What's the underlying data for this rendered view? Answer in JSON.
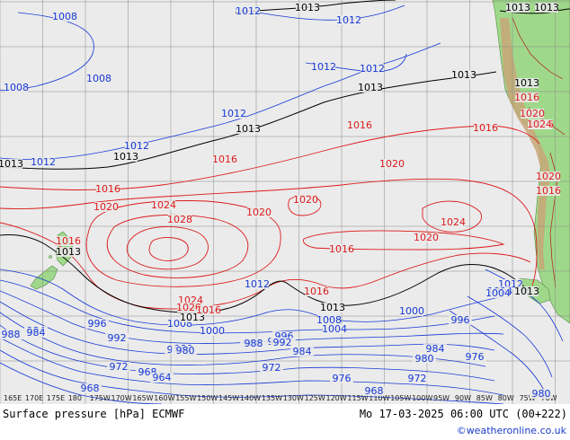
{
  "title": "Surface pressure [hPa] ECMWF",
  "valid_time": "Mo 17-03-2025 06:00 UTC (00+222)",
  "credit": "©weatheronline.co.uk",
  "lon_labels": [
    "165E",
    "170E",
    "175E",
    "180",
    "175W",
    "170W",
    "165W",
    "160W",
    "155W",
    "150W",
    "145W",
    "140W",
    "135W",
    "130W",
    "125W",
    "120W",
    "115W",
    "110W",
    "105W",
    "100W",
    "95W",
    "90W",
    "85W",
    "80W",
    "75W",
    "70W"
  ],
  "isobar_labels": {
    "low": [
      {
        "t": "1008"
      },
      {
        "t": "1008"
      },
      {
        "t": "1008"
      },
      {
        "t": "1012"
      },
      {
        "t": "1012"
      },
      {
        "t": "1012"
      },
      {
        "t": "1012"
      },
      {
        "t": "1012"
      },
      {
        "t": "1012"
      },
      {
        "t": "1012"
      },
      {
        "t": "1012"
      },
      {
        "t": "1012"
      },
      {
        "t": "1008"
      },
      {
        "t": "1004"
      },
      {
        "t": "1004"
      },
      {
        "t": "1000"
      },
      {
        "t": "1000"
      },
      {
        "t": "996"
      },
      {
        "t": "996"
      },
      {
        "t": "992"
      },
      {
        "t": "992"
      },
      {
        "t": "988"
      },
      {
        "t": "988"
      },
      {
        "t": "984"
      },
      {
        "t": "984"
      },
      {
        "t": "984"
      },
      {
        "t": "984"
      },
      {
        "t": "980"
      },
      {
        "t": "980"
      },
      {
        "t": "980"
      },
      {
        "t": "976"
      },
      {
        "t": "976"
      },
      {
        "t": "972"
      },
      {
        "t": "972"
      },
      {
        "t": "972"
      },
      {
        "t": "968"
      },
      {
        "t": "968"
      },
      {
        "t": "968"
      },
      {
        "t": "964"
      },
      {
        "t": "1008"
      },
      {
        "t": "1004"
      },
      {
        "t": "996"
      },
      {
        "t": "992"
      },
      {
        "t": "988"
      },
      {
        "t": "984"
      },
      {
        "t": "976"
      },
      {
        "t": "980"
      }
    ],
    "normal": [
      {
        "t": "1013"
      },
      {
        "t": "1013"
      },
      {
        "t": "1013"
      },
      {
        "t": "1013"
      },
      {
        "t": "1013"
      },
      {
        "t": "1013"
      },
      {
        "t": "1013"
      },
      {
        "t": "1013"
      },
      {
        "t": "1013"
      },
      {
        "t": "1013"
      },
      {
        "t": "1013"
      },
      {
        "t": "1013"
      },
      {
        "t": "1013"
      }
    ],
    "high": [
      {
        "t": "1016"
      },
      {
        "t": "1016"
      },
      {
        "t": "1016"
      },
      {
        "t": "1016"
      },
      {
        "t": "1016"
      },
      {
        "t": "1016"
      },
      {
        "t": "1020"
      },
      {
        "t": "1020"
      },
      {
        "t": "1020"
      },
      {
        "t": "1020"
      },
      {
        "t": "1020"
      },
      {
        "t": "1024"
      },
      {
        "t": "1024"
      },
      {
        "t": "1024"
      },
      {
        "t": "1028"
      },
      {
        "t": "1020"
      },
      {
        "t": "1016"
      },
      {
        "t": "1016"
      },
      {
        "t": "1016"
      },
      {
        "t": "1016"
      },
      {
        "t": "1020"
      },
      {
        "t": "1024"
      },
      {
        "t": "1028"
      },
      {
        "t": "1020"
      },
      {
        "t": "1016"
      }
    ]
  },
  "colors": {
    "ocean": "#ebebeb",
    "land": "#9fd88a",
    "mountains": "#c8a777",
    "grid": "#8a8a8a",
    "low_isobar": "#1638d6",
    "normal_isobar": "#000000",
    "high_isobar": "#dc1a1a",
    "border": "#b01818"
  },
  "icons": {
    "land": "landmass-shape"
  }
}
